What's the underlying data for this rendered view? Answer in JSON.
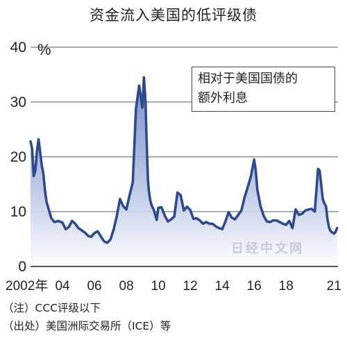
{
  "title": "资金流入美国的低评级债",
  "watermark": "日经中文网",
  "notes": {
    "note1": "（注）CCC评级以下",
    "note2": "（出处）美国洲际交易所（ICE）等"
  },
  "colors": {
    "line": "#2e4a8c",
    "fill_top": "#6f86c6",
    "fill_bottom": "#ffffff",
    "grid": "#555555"
  },
  "chart_data": {
    "type": "area",
    "title": "资金流入美国的低评级债",
    "unit": "%",
    "legend": "相对于美国国债的额外利息",
    "legend_lines": [
      "相对于美国国债的",
      "额外利息"
    ],
    "legend_placement": "top-right",
    "xlim": [
      2002.0,
      2021.25
    ],
    "ylim": [
      0,
      40
    ],
    "y_ticks": [
      0,
      10,
      20,
      30,
      40
    ],
    "x_tick_labels": [
      {
        "x": 2002,
        "label": "2002年"
      },
      {
        "x": 2004,
        "label": "04"
      },
      {
        "x": 2006,
        "label": "06"
      },
      {
        "x": 2008,
        "label": "08"
      },
      {
        "x": 2010,
        "label": "10"
      },
      {
        "x": 2012,
        "label": "12"
      },
      {
        "x": 2014,
        "label": "14"
      },
      {
        "x": 2016,
        "label": "16"
      },
      {
        "x": 2018,
        "label": "18"
      },
      {
        "x": 2021,
        "label": "21"
      }
    ],
    "grid": "horizontal",
    "series": [
      {
        "x": [
          2002.0,
          2002.1,
          2002.2,
          2002.3,
          2002.4,
          2002.5,
          2002.6,
          2002.7,
          2002.8,
          2002.9,
          2003.0,
          2003.15,
          2003.3,
          2003.5,
          2003.75,
          2004.0,
          2004.2,
          2004.4,
          2004.6,
          2004.8,
          2005.0,
          2005.2,
          2005.4,
          2005.6,
          2005.8,
          2006.0,
          2006.2,
          2006.4,
          2006.6,
          2006.8,
          2007.0,
          2007.2,
          2007.4,
          2007.6,
          2007.8,
          2008.0,
          2008.2,
          2008.4,
          2008.6,
          2008.8,
          2009.0,
          2009.1,
          2009.2,
          2009.25,
          2009.3,
          2009.35,
          2009.4,
          2009.5,
          2009.6,
          2009.7,
          2009.8,
          2009.9,
          2010.0,
          2010.2,
          2010.4,
          2010.6,
          2010.8,
          2011.0,
          2011.2,
          2011.4,
          2011.6,
          2011.8,
          2012.0,
          2012.2,
          2012.4,
          2012.6,
          2012.8,
          2013.0,
          2013.2,
          2013.4,
          2013.6,
          2013.8,
          2014.0,
          2014.2,
          2014.4,
          2014.6,
          2014.8,
          2015.0,
          2015.2,
          2015.4,
          2015.6,
          2015.8,
          2016.0,
          2016.1,
          2016.2,
          2016.4,
          2016.6,
          2016.8,
          2017.0,
          2017.2,
          2017.4,
          2017.6,
          2017.8,
          2018.0,
          2018.2,
          2018.4,
          2018.6,
          2018.8,
          2019.0,
          2019.2,
          2019.4,
          2019.6,
          2019.8,
          2020.0,
          2020.1,
          2020.2,
          2020.3,
          2020.4,
          2020.5,
          2020.6,
          2020.7,
          2020.8,
          2020.9,
          2021.0,
          2021.1,
          2021.2
        ],
        "values": [
          22.8,
          21.5,
          16.5,
          17.5,
          21.0,
          23.2,
          21.0,
          18.5,
          17.0,
          14.0,
          11.8,
          10.3,
          8.8,
          8.1,
          8.3,
          8.0,
          6.8,
          7.2,
          8.3,
          7.8,
          7.0,
          6.6,
          6.2,
          5.6,
          5.4,
          6.1,
          6.4,
          5.5,
          4.6,
          4.3,
          4.9,
          6.7,
          9.2,
          12.3,
          11.0,
          10.4,
          13.0,
          15.3,
          28.8,
          33.0,
          29.0,
          34.5,
          30.0,
          25.0,
          20.0,
          16.0,
          14.0,
          12.0,
          11.0,
          10.5,
          9.5,
          8.5,
          10.7,
          10.8,
          9.3,
          8.2,
          8.6,
          9.1,
          13.5,
          13.0,
          10.2,
          10.9,
          10.3,
          8.7,
          8.8,
          8.4,
          7.8,
          8.1,
          7.8,
          7.8,
          7.3,
          7.0,
          6.8,
          8.2,
          9.9,
          8.9,
          8.6,
          9.4,
          10.2,
          12.6,
          14.5,
          16.5,
          19.5,
          17.5,
          14.0,
          11.0,
          9.2,
          8.2,
          8.1,
          8.4,
          8.4,
          8.1,
          7.8,
          7.6,
          8.3,
          7.0,
          10.4,
          9.4,
          9.6,
          10.2,
          10.4,
          10.5,
          10.0,
          17.8,
          17.5,
          15.0,
          12.3,
          11.5,
          11.0,
          8.5,
          7.0,
          6.4,
          6.2,
          6.0,
          6.3,
          7.0
        ]
      }
    ]
  }
}
